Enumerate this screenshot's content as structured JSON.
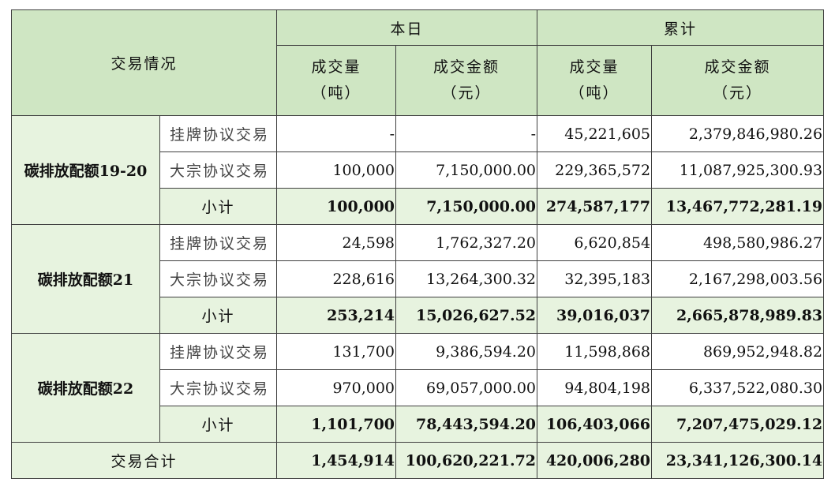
{
  "header": {
    "corner_label": "交易情况",
    "today_label": "本日",
    "cumulative_label": "累计",
    "volume_label": "成交量",
    "volume_unit": "（吨）",
    "amount_label": "成交金额",
    "amount_unit": "（元）"
  },
  "groups": [
    {
      "name": "碳排放配额19-20",
      "rows": [
        {
          "type": "挂牌协议交易",
          "today_volume": "-",
          "today_amount": "-",
          "cum_volume": "45,221,605",
          "cum_amount": "2,379,846,980.26"
        },
        {
          "type": "大宗协议交易",
          "today_volume": "100,000",
          "today_amount": "7,150,000.00",
          "cum_volume": "229,365,572",
          "cum_amount": "11,087,925,300.93"
        }
      ],
      "subtotal": {
        "label": "小计",
        "today_volume": "100,000",
        "today_amount": "7,150,000.00",
        "cum_volume": "274,587,177",
        "cum_amount": "13,467,772,281.19"
      }
    },
    {
      "name": "碳排放配额21",
      "rows": [
        {
          "type": "挂牌协议交易",
          "today_volume": "24,598",
          "today_amount": "1,762,327.20",
          "cum_volume": "6,620,854",
          "cum_amount": "498,580,986.27"
        },
        {
          "type": "大宗协议交易",
          "today_volume": "228,616",
          "today_amount": "13,264,300.32",
          "cum_volume": "32,395,183",
          "cum_amount": "2,167,298,003.56"
        }
      ],
      "subtotal": {
        "label": "小计",
        "today_volume": "253,214",
        "today_amount": "15,026,627.52",
        "cum_volume": "39,016,037",
        "cum_amount": "2,665,878,989.83"
      }
    },
    {
      "name": "碳排放配额22",
      "rows": [
        {
          "type": "挂牌协议交易",
          "today_volume": "131,700",
          "today_amount": "9,386,594.20",
          "cum_volume": "11,598,868",
          "cum_amount": "869,952,948.82"
        },
        {
          "type": "大宗协议交易",
          "today_volume": "970,000",
          "today_amount": "69,057,000.00",
          "cum_volume": "94,804,198",
          "cum_amount": "6,337,522,080.30"
        }
      ],
      "subtotal": {
        "label": "小计",
        "today_volume": "1,101,700",
        "today_amount": "78,443,594.20",
        "cum_volume": "106,403,066",
        "cum_amount": "7,207,475,029.12"
      }
    }
  ],
  "total": {
    "label": "交易合计",
    "today_volume": "1,454,914",
    "today_amount": "100,620,221.72",
    "cum_volume": "420,006,280",
    "cum_amount": "23,341,126,300.14"
  },
  "colors": {
    "header_bg": "#cfe6c3",
    "subtotal_bg": "#e7f3df",
    "border": "#3f3f3f"
  }
}
